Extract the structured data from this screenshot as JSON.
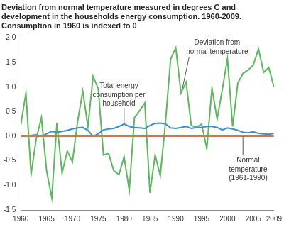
{
  "chart_data": {
    "type": "line",
    "title": [
      "Deviation from normal temperature measured in degrees C and",
      "development in the households energy consumption. 1960-2009.",
      "Consumption in 1960 is indexed to 0"
    ],
    "x": [
      1960,
      1961,
      1962,
      1963,
      1964,
      1965,
      1966,
      1967,
      1968,
      1969,
      1970,
      1971,
      1972,
      1973,
      1974,
      1975,
      1976,
      1977,
      1978,
      1979,
      1980,
      1981,
      1982,
      1983,
      1984,
      1985,
      1986,
      1987,
      1988,
      1989,
      1990,
      1991,
      1992,
      1993,
      1994,
      1995,
      1996,
      1997,
      1998,
      1999,
      2000,
      2001,
      2002,
      2003,
      2004,
      2005,
      2006,
      2007,
      2008,
      2009
    ],
    "series": [
      {
        "name": "Deviation from\nnormal temperature",
        "color": "#5cb85c",
        "values": [
          0.23,
          0.88,
          -0.77,
          -0.05,
          0.38,
          -0.7,
          -1.25,
          0.27,
          -0.75,
          -0.3,
          -0.52,
          0.3,
          0.92,
          0.2,
          1.22,
          0.97,
          -0.38,
          -0.35,
          -0.7,
          -0.78,
          -0.42,
          -1.1,
          0.38,
          0.52,
          0.68,
          -1.15,
          -0.38,
          -0.8,
          0.28,
          1.57,
          1.8,
          0.88,
          1.1,
          0.22,
          0.18,
          0.25,
          -0.25,
          0.98,
          0.35,
          0.95,
          1.58,
          0.2,
          1.08,
          1.28,
          1.35,
          1.45,
          1.78,
          1.3,
          1.4,
          1.0
        ]
      },
      {
        "name": "Total energy\nconsumption per\nhousehold",
        "color": "#3b8fd0",
        "values": [
          0,
          0,
          0.02,
          0.03,
          0,
          0.05,
          0.1,
          0.08,
          0.1,
          0.12,
          0.15,
          0.17,
          0.18,
          0.12,
          0,
          0.05,
          0.13,
          0.15,
          0.16,
          0.2,
          0.25,
          0.2,
          0.18,
          0.17,
          0.16,
          0.22,
          0.26,
          0.27,
          0.25,
          0.17,
          0.16,
          0.18,
          0.2,
          0.16,
          0.18,
          0.18,
          0.2,
          0.2,
          0.18,
          0.13,
          0.17,
          0.15,
          0.12,
          0.08,
          0.07,
          0.09,
          0.06,
          0.05,
          0.04,
          0.06
        ]
      },
      {
        "name": "Normal\ntemperature\n(1961-1990)",
        "color": "#e8722a",
        "values": [
          0,
          0,
          0,
          0,
          0,
          0,
          0,
          0,
          0,
          0,
          0,
          0,
          0,
          0,
          0,
          0,
          0,
          0,
          0,
          0,
          0,
          0,
          0,
          0,
          0,
          0,
          0,
          0,
          0,
          0,
          0,
          0,
          0,
          0,
          0,
          0,
          0,
          0,
          0,
          0,
          0,
          0,
          0,
          0,
          0,
          0,
          0,
          0,
          0,
          0
        ]
      }
    ],
    "xlim": [
      1960,
      2009
    ],
    "xticks": [
      1960,
      1965,
      1970,
      1975,
      1980,
      1985,
      1990,
      1995,
      2000,
      2005,
      2009
    ],
    "ylim": [
      -1.5,
      2.0
    ],
    "yticks": [
      {
        "value": -1.5,
        "label": "-1,5"
      },
      {
        "value": -1.0,
        "label": "-1,0"
      },
      {
        "value": -0.5,
        "label": "-0,5"
      },
      {
        "value": 0,
        "label": "0,0"
      },
      {
        "value": 0.5,
        "label": "0,5"
      },
      {
        "value": 1.0,
        "label": "1,0"
      },
      {
        "value": 1.5,
        "label": "1,5"
      },
      {
        "value": 2.0,
        "label": "2,0"
      }
    ],
    "grid": false
  }
}
